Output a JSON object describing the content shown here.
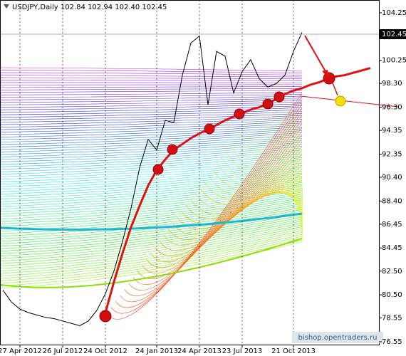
{
  "chart_data": {
    "type": "line",
    "title": "USDJPY,Daily  102.84 102.94 102.40 102.45",
    "categories": [
      null,
      null,
      "27 Apr 2012",
      null,
      null,
      null,
      null,
      "26 Jul 2012",
      null,
      null,
      null,
      null,
      "24 Oct 2012",
      null,
      null,
      null,
      null,
      null,
      "24 Jan 2013",
      null,
      null,
      null,
      null,
      "24 Apr 2013",
      null,
      null,
      null,
      null,
      "23 Jul 2013",
      null,
      null,
      null,
      null,
      null,
      "21 Oct 2013",
      null,
      null,
      null,
      null,
      null,
      null,
      null,
      null,
      null
    ],
    "series": [
      {
        "name": "USDJPY",
        "color": "#000000",
        "values": [
          80.9,
          79.9,
          79.3,
          79.0,
          78.8,
          78.6,
          78.5,
          78.3,
          78.1,
          77.9,
          78.3,
          79.2,
          80.6,
          82.5,
          85.0,
          87.8,
          91.2,
          93.6,
          92.7,
          95.2,
          95.0,
          99.0,
          101.7,
          102.3,
          96.5,
          101.0,
          100.6,
          97.5,
          99.3,
          100.3,
          98.7,
          98.0,
          98.3,
          99.0,
          101.0,
          102.6,
          null,
          null,
          null,
          null,
          null,
          null,
          null,
          null
        ]
      },
      {
        "name": "Trend",
        "color": "#e01010",
        "values": [
          null,
          null,
          null,
          null,
          null,
          null,
          null,
          null,
          null,
          null,
          null,
          null,
          79.0,
          81.6,
          84.0,
          86.2,
          88.0,
          89.7,
          91.0,
          91.9,
          92.7,
          93.2,
          93.7,
          94.1,
          94.4,
          94.8,
          95.2,
          95.5,
          95.8,
          96.1,
          96.3,
          96.6,
          97.0,
          97.4,
          97.7,
          97.9,
          98.2,
          98.4,
          98.7,
          98.9,
          99.0,
          99.2,
          99.4,
          99.6
        ]
      }
    ],
    "last_price": 102.45,
    "ylim": [
      76.31,
      105.33
    ],
    "yticks": [
      104.25,
      100.25,
      {
        "value": 98.3,
        "label": "98.30"
      },
      {
        "value": 96.3,
        "label": "96.30"
      },
      94.35,
      92.35,
      {
        "value": 90.4,
        "label": "90.40"
      },
      {
        "value": 88.4,
        "label": "88.40"
      },
      86.45,
      84.45,
      {
        "value": 82.5,
        "label": "82.50"
      },
      {
        "value": 80.5,
        "label": "80.50"
      },
      78.55,
      76.55
    ],
    "grid": true,
    "watermark": "bishop.opentraders.ru"
  }
}
